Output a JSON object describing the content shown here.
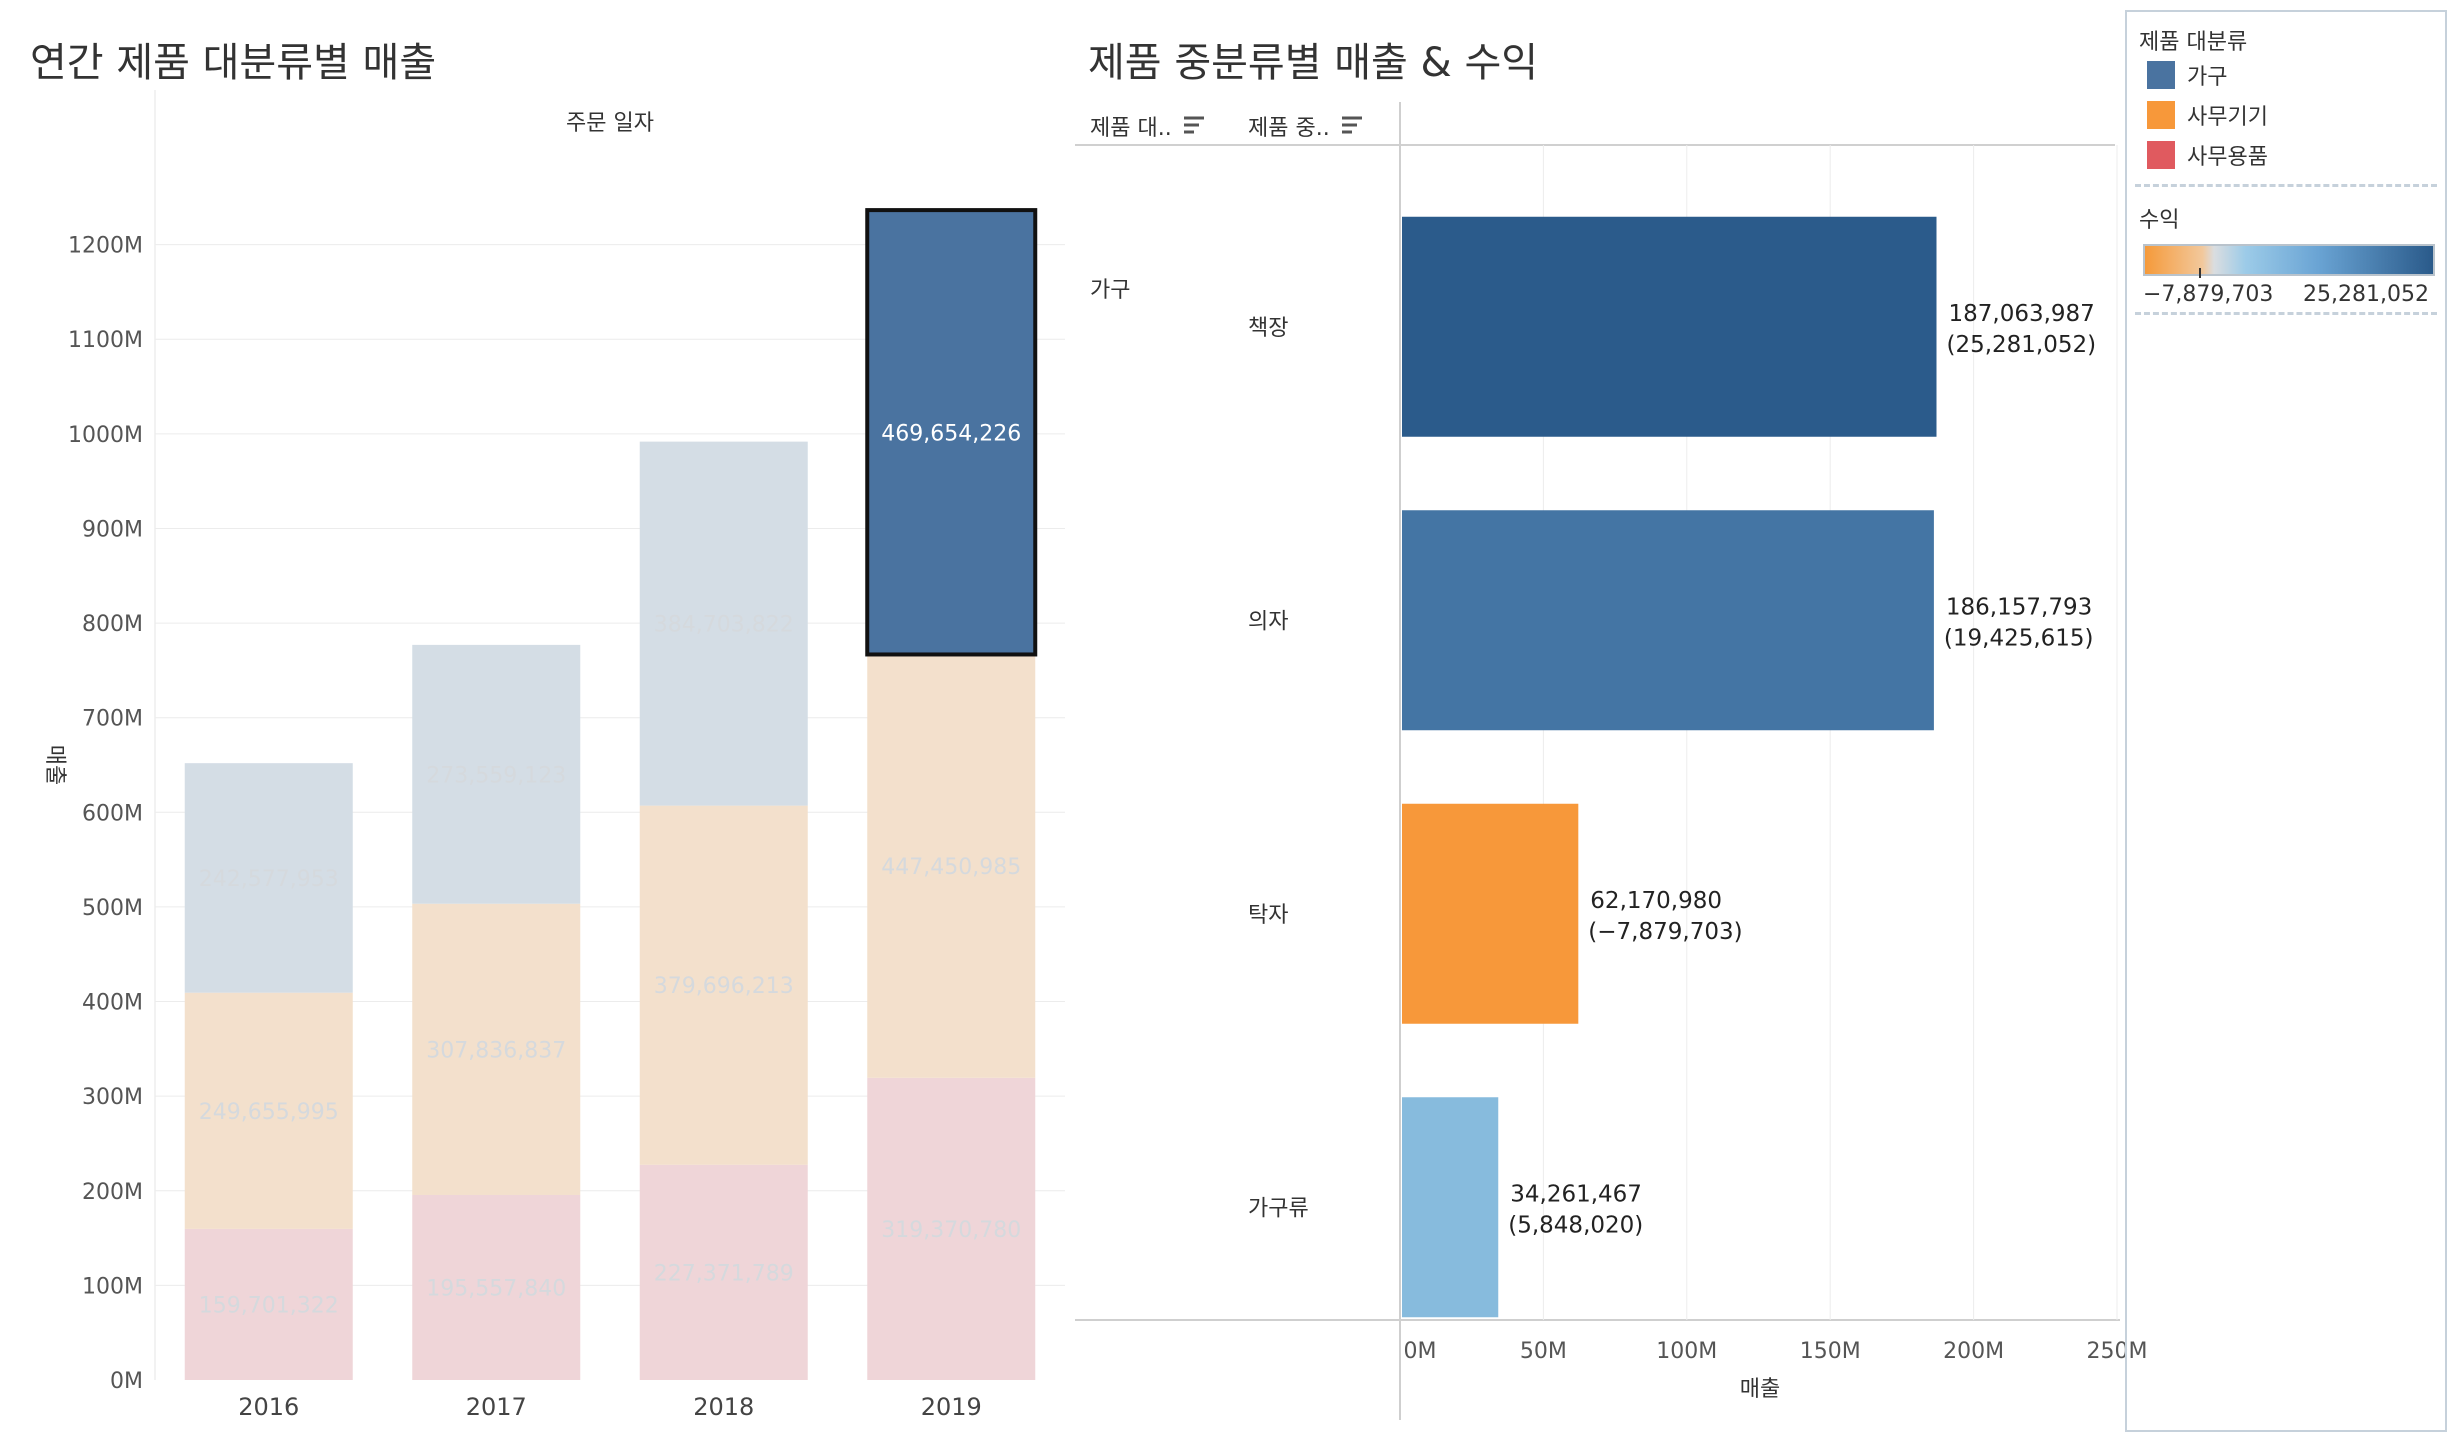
{
  "left_title": "연간 제품 대분류별 매출",
  "right_title": "제품 중분류별 매출 & 수익",
  "left_chart": {
    "type": "bar",
    "header": "주문 일자",
    "ylabel": "매출",
    "ylim": [
      0,
      1300000000
    ],
    "yticks": [
      "0M",
      "100M",
      "200M",
      "300M",
      "400M",
      "500M",
      "600M",
      "700M",
      "800M",
      "900M",
      "1000M",
      "1100M",
      "1200M"
    ],
    "categories": [
      "2016",
      "2017",
      "2018",
      "2019"
    ],
    "series": [
      {
        "name": "사무용품",
        "color": "#efd5d8",
        "values": [
          159701322,
          195557840,
          227371789,
          319370780
        ],
        "labels": [
          "159,701,322",
          "195,557,840",
          "227,371,789",
          "319,370,780"
        ]
      },
      {
        "name": "사무기기",
        "color": "#f3e0cc",
        "values": [
          249655995,
          307836837,
          379696213,
          447450985
        ],
        "labels": [
          "249,655,995",
          "307,836,837",
          "379,696,213",
          "447,450,985"
        ]
      },
      {
        "name": "가구",
        "color": "#d4dde5",
        "values": [
          242577953,
          273559123,
          384703822,
          469654226
        ],
        "labels": [
          "242,577,953",
          "273,559,123",
          "384,703,822",
          "469,654,226"
        ]
      }
    ],
    "highlight": {
      "category": "2019",
      "series": "가구",
      "color": "#4a73a0"
    }
  },
  "chart_data": [
    {
      "type": "bar",
      "title": "연간 제품 대분류별 매출",
      "xlabel": "주문 일자",
      "ylabel": "매출",
      "categories": [
        "2016",
        "2017",
        "2018",
        "2019"
      ],
      "series": [
        {
          "name": "사무용품",
          "values": [
            159701322,
            195557840,
            227371789,
            319370780
          ]
        },
        {
          "name": "사무기기",
          "values": [
            249655995,
            307836837,
            379696213,
            447450985
          ]
        },
        {
          "name": "가구",
          "values": [
            242577953,
            273559123,
            384703822,
            469654226
          ]
        }
      ],
      "ylim": [
        0,
        1300000000
      ]
    },
    {
      "type": "bar",
      "title": "제품 중분류별 매출 & 수익",
      "xlabel": "매출",
      "categories": [
        "책장",
        "의자",
        "탁자",
        "가구류"
      ],
      "series": [
        {
          "name": "매출",
          "values": [
            187063987,
            186157793,
            62170980,
            34261467
          ]
        },
        {
          "name": "수익",
          "values": [
            25281052,
            19425615,
            -7879703,
            5848020
          ]
        }
      ],
      "xlim": [
        0,
        250000000
      ]
    }
  ],
  "right_chart": {
    "col1_header": "제품 대..",
    "col2_header": "제품 중..",
    "xlabel": "매출",
    "xlim": [
      0,
      250000000
    ],
    "xticks": [
      "0M",
      "50M",
      "100M",
      "150M",
      "200M",
      "250M"
    ],
    "category": "가구",
    "rows": [
      {
        "name": "책장",
        "sales": 187063987,
        "sales_label": "187,063,987",
        "profit_label": "(25,281,052)",
        "color": "#2b5b8b"
      },
      {
        "name": "의자",
        "sales": 186157793,
        "sales_label": "186,157,793",
        "profit_label": "(19,425,615)",
        "color": "#4475a4"
      },
      {
        "name": "탁자",
        "sales": 62170980,
        "sales_label": "62,170,980",
        "profit_label": "(−7,879,703)",
        "color": "#f7983a"
      },
      {
        "name": "가구류",
        "sales": 34261467,
        "sales_label": "34,261,467",
        "profit_label": "(5,848,020)",
        "color": "#87bbdd"
      }
    ]
  },
  "legend": {
    "title": "제품 대분류",
    "items": [
      {
        "label": "가구",
        "color": "#4a73a0"
      },
      {
        "label": "사무기기",
        "color": "#f7983a"
      },
      {
        "label": "사무용품",
        "color": "#e05a5f"
      }
    ],
    "profit_title": "수익",
    "min_label": "−7,879,703",
    "max_label": "25,281,052"
  }
}
